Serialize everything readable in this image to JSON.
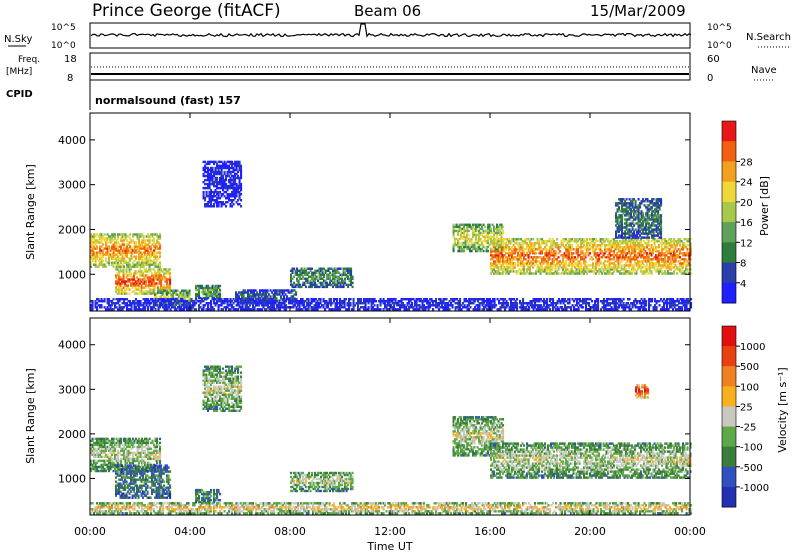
{
  "header": {
    "station": "Prince George (fitACF)",
    "beam": "Beam 06",
    "date": "15/Mar/2009"
  },
  "strip": {
    "nsky_label": "N.Sky",
    "nsearch_label": "N.Search",
    "nsky_ticks": [
      "10^5",
      "10^0"
    ],
    "nsky_right_ticks": [
      "10^5",
      "10^0"
    ],
    "freq_label": "Freq.",
    "freq_unit": "[MHz]",
    "freq_ticks": [
      "18",
      "8"
    ],
    "nave_label": "Nave",
    "nave_ticks": [
      "60",
      "0"
    ],
    "cpid_label": "CPID",
    "cpid_text": "normalsound (fast) 157"
  },
  "chart_data": [
    {
      "type": "heatmap",
      "name": "power",
      "title": "",
      "xlabel": "Time UT",
      "ylabel": "Slant Range [km]",
      "xticks": [
        "00:00",
        "04:00",
        "08:00",
        "12:00",
        "16:00",
        "20:00",
        "00:00"
      ],
      "yticks": [
        "1000",
        "2000",
        "3000",
        "4000"
      ],
      "xlim": [
        0,
        24
      ],
      "ylim": [
        180,
        4600
      ],
      "colorbar": {
        "label": "Power [dB]",
        "ticks": [
          "4",
          "8",
          "12",
          "16",
          "20",
          "24",
          "28"
        ],
        "colors": [
          "#1f1fff",
          "#2a3fa8",
          "#2f7d3c",
          "#5fa05a",
          "#a8c84a",
          "#f0d838",
          "#f2a020",
          "#f06010",
          "#e81818"
        ]
      },
      "echo_regions": [
        {
          "t0": 0.0,
          "t1": 2.8,
          "r0": 1150,
          "r1": 1900,
          "level": 0.8
        },
        {
          "t0": 1.0,
          "t1": 3.2,
          "r0": 550,
          "r1": 1100,
          "level": 0.9
        },
        {
          "t0": 2.5,
          "t1": 4.0,
          "r0": 300,
          "r1": 650,
          "level": 0.5
        },
        {
          "t0": 4.2,
          "t1": 5.2,
          "r0": 450,
          "r1": 750,
          "level": 0.4
        },
        {
          "t0": 5.8,
          "t1": 8.2,
          "r0": 350,
          "r1": 650,
          "level": 0.2
        },
        {
          "t0": 8.0,
          "t1": 10.5,
          "r0": 700,
          "r1": 1150,
          "level": 0.35
        },
        {
          "t0": 14.5,
          "t1": 16.5,
          "r0": 1500,
          "r1": 2100,
          "level": 0.6
        },
        {
          "t0": 16.0,
          "t1": 24.0,
          "r0": 1000,
          "r1": 1800,
          "level": 0.85
        },
        {
          "t0": 4.5,
          "t1": 6.0,
          "r0": 2500,
          "r1": 3500,
          "level": 0.05
        },
        {
          "t0": 21.0,
          "t1": 22.8,
          "r0": 1800,
          "r1": 2700,
          "level": 0.3
        },
        {
          "t0": 0.0,
          "t1": 24.0,
          "r0": 200,
          "r1": 450,
          "level": 0.1
        }
      ]
    },
    {
      "type": "heatmap",
      "name": "velocity",
      "title": "",
      "xlabel": "Time UT",
      "ylabel": "Slant Range [km]",
      "xticks": [
        "00:00",
        "04:00",
        "08:00",
        "12:00",
        "16:00",
        "20:00",
        "00:00"
      ],
      "yticks": [
        "1000",
        "2000",
        "3000",
        "4000"
      ],
      "xlim": [
        0,
        24
      ],
      "ylim": [
        180,
        4600
      ],
      "colorbar": {
        "label": "Velocity [m s⁻¹]",
        "ticks": [
          "1000",
          "500",
          "100",
          "25",
          "-25",
          "-100",
          "-500",
          "-1000"
        ],
        "colors": [
          "#2030b0",
          "#3050c0",
          "#3a7d3a",
          "#5fa84a",
          "#c8c8c0",
          "#f8b020",
          "#f08020",
          "#e84010",
          "#e01010"
        ]
      },
      "echo_regions": [
        {
          "t0": 0.0,
          "t1": 2.8,
          "r0": 1150,
          "r1": 1900,
          "level": 0.5
        },
        {
          "t0": 1.0,
          "t1": 3.2,
          "r0": 550,
          "r1": 1300,
          "level": 0.3
        },
        {
          "t0": 4.2,
          "t1": 5.2,
          "r0": 450,
          "r1": 750,
          "level": 0.35
        },
        {
          "t0": 8.0,
          "t1": 10.5,
          "r0": 700,
          "r1": 1150,
          "level": 0.5
        },
        {
          "t0": 14.5,
          "t1": 16.5,
          "r0": 1500,
          "r1": 2400,
          "level": 0.5
        },
        {
          "t0": 16.0,
          "t1": 24.0,
          "r0": 1000,
          "r1": 1800,
          "level": 0.5
        },
        {
          "t0": 21.8,
          "t1": 22.3,
          "r0": 2800,
          "r1": 3100,
          "level": 0.95
        },
        {
          "t0": 4.5,
          "t1": 6.0,
          "r0": 2500,
          "r1": 3500,
          "level": 0.5
        },
        {
          "t0": 0.0,
          "t1": 24.0,
          "r0": 200,
          "r1": 450,
          "level": 0.62
        }
      ]
    }
  ]
}
